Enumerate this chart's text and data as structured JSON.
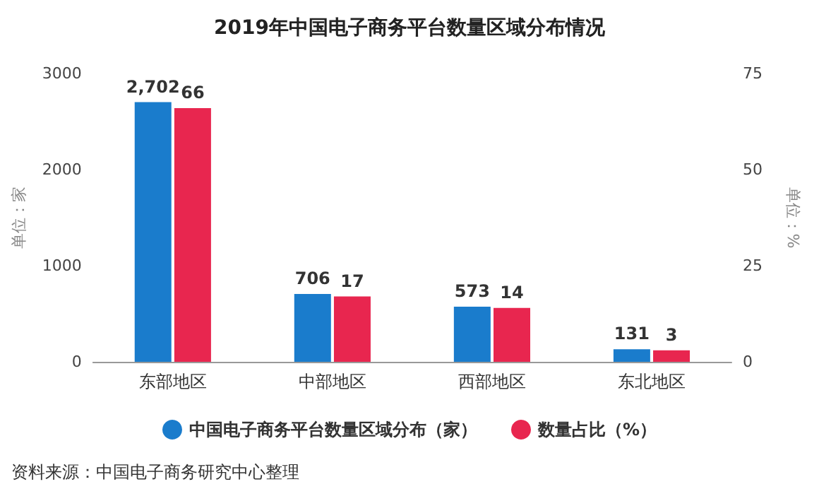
{
  "chart_data": {
    "type": "bar",
    "title": "2019年中国电子商务平台数量区域分布情况",
    "categories": [
      "东部地区",
      "中部地区",
      "西部地区",
      "东北地区"
    ],
    "series": [
      {
        "name": "中国电子商务平台数量区域分布（家）",
        "color": "#1a7ccc",
        "values": [
          2702,
          706,
          573,
          131
        ],
        "value_labels": [
          "2,702",
          "706",
          "573",
          "131"
        ]
      },
      {
        "name": "数量占比（%）",
        "color": "#e8264f",
        "values": [
          66,
          17,
          14,
          3
        ],
        "axis": "y2",
        "value_labels": [
          "66",
          "17",
          "14",
          "3"
        ]
      }
    ],
    "ylabel": "单位：家",
    "y2label": "单位：%",
    "ylim": [
      0,
      3000
    ],
    "yticks": [
      0,
      1000,
      2000,
      3000
    ],
    "y2lim": [
      0,
      75
    ],
    "y2ticks": [
      0,
      25,
      50,
      75
    ],
    "grid": false,
    "legend": "bottom",
    "annotations": [
      "资料来源：中国电子商务研究中心整理"
    ]
  }
}
